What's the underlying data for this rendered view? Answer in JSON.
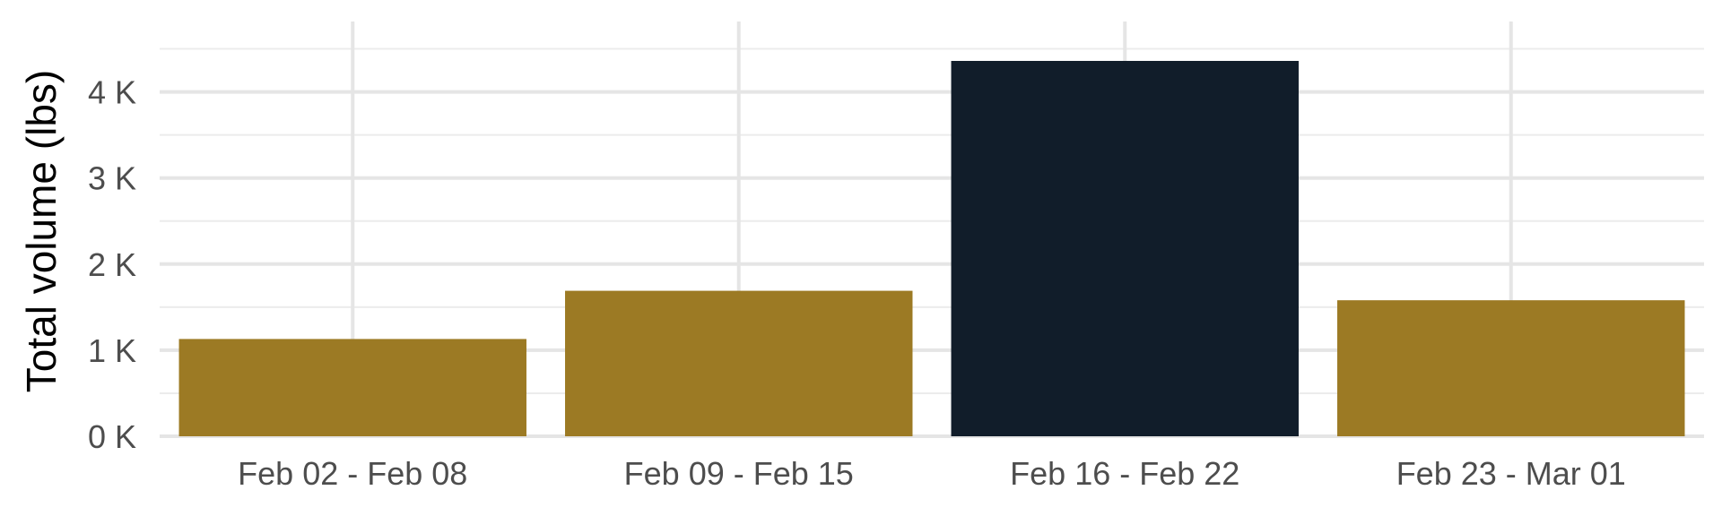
{
  "chart_data": {
    "type": "bar",
    "categories": [
      "Feb 02 - Feb 08",
      "Feb 09 - Feb 15",
      "Feb 16 - Feb 22",
      "Feb 23 - Mar 01"
    ],
    "values": [
      1130,
      1690,
      4360,
      1580
    ],
    "highlight_index": 2,
    "colors": {
      "bar": "#9c7a24",
      "highlight": "#111d2a"
    },
    "title": "",
    "xlabel": "",
    "ylabel": "Total volume (lbs)",
    "ylim": [
      0,
      4500
    ],
    "y_ticks": [
      0,
      1000,
      2000,
      3000,
      4000
    ],
    "y_tick_labels": [
      "0 K",
      "1 K",
      "2 K",
      "3 K",
      "4 K"
    ],
    "grid": true,
    "legend": "none"
  }
}
